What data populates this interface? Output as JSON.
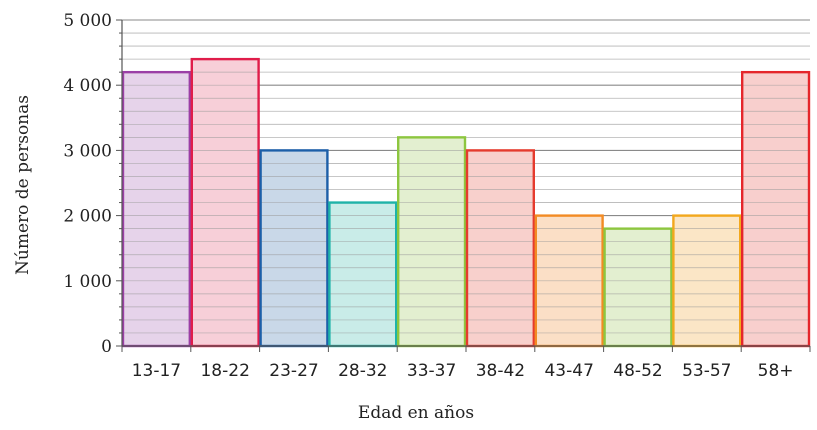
{
  "chart_data": {
    "type": "bar",
    "xlabel": "Edad en años",
    "ylabel": "Número de personas",
    "ylim": [
      0,
      5000
    ],
    "yticks": [
      0,
      1000,
      2000,
      3000,
      4000,
      5000
    ],
    "ytick_labels": [
      "0",
      "1 000",
      "2 000",
      "3 000",
      "4 000",
      "5 000"
    ],
    "categories": [
      "13-17",
      "18-22",
      "23-27",
      "28-32",
      "33-37",
      "38-42",
      "43-47",
      "48-52",
      "53-57",
      "58+"
    ],
    "values": [
      4200,
      4400,
      3000,
      2200,
      3200,
      3000,
      2000,
      1800,
      2000,
      4200
    ],
    "grid": true,
    "grid_minor_step": 200,
    "bar_colors": [
      "#9b3fa6",
      "#e01d4a",
      "#1d5fa8",
      "#1fb3a8",
      "#8dc63f",
      "#e53b2e",
      "#f28b24",
      "#8dc63f",
      "#f2a81d",
      "#e5262b"
    ],
    "bar_fills": [
      "#e6d3ea",
      "#f7cfd8",
      "#c9d8e8",
      "#c9ece8",
      "#e3efd0",
      "#f8d0cc",
      "#fbdfc6",
      "#e3efd0",
      "#fbe6c6",
      "#f8cfcd"
    ]
  }
}
